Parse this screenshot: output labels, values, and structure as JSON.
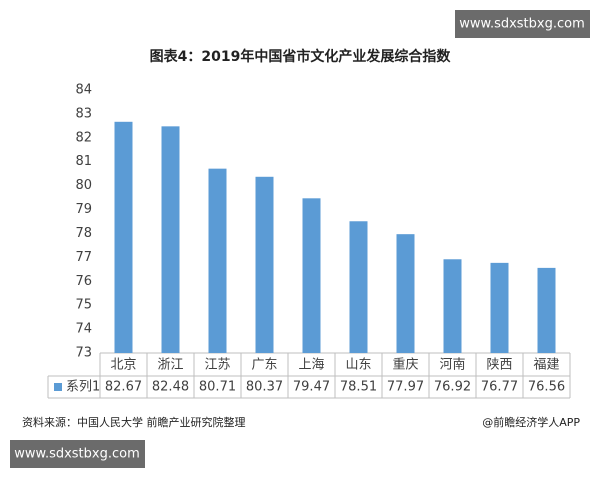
{
  "chart_data": {
    "type": "bar",
    "title": "图表4：2019年中国省市文化产业发展综合指数",
    "categories": [
      "北京",
      "浙江",
      "江苏",
      "广东",
      "上海",
      "山东",
      "重庆",
      "河南",
      "陕西",
      "福建"
    ],
    "series": [
      {
        "name": "系列1",
        "color": "#5b9bd5",
        "values": [
          82.67,
          82.48,
          80.71,
          80.37,
          79.47,
          78.51,
          77.97,
          76.92,
          76.77,
          76.56
        ]
      }
    ],
    "ylim": [
      73,
      84
    ],
    "yticks": [
      73,
      74,
      75,
      76,
      77,
      78,
      79,
      80,
      81,
      82,
      83,
      84
    ],
    "grid": false,
    "source": "资料来源：中国人民大学 前瞻产业研究院整理",
    "credit": "@前瞻经济学人APP",
    "watermarks": [
      "www.sdxstbxg.com",
      "www.sdxstbxg.com"
    ]
  }
}
